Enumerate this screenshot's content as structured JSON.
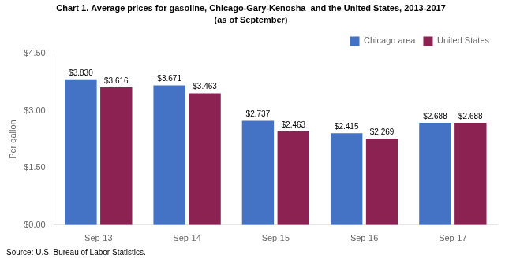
{
  "chart_data": {
    "type": "bar",
    "title": "Chart 1. Average prices for gasoline, Chicago-Gary-Kenosha  and the United States, 2013-2017",
    "subtitle": "(as of September)",
    "y_label": "Per gallon",
    "source": "Source: U.S. Bureau of Labor Statistics.",
    "categories": [
      "Sep-13",
      "Sep-14",
      "Sep-15",
      "Sep-16",
      "Sep-17"
    ],
    "series": [
      {
        "name": "Chicago area",
        "color": "#4472C4",
        "values": [
          3.83,
          3.671,
          2.737,
          2.415,
          2.688
        ],
        "value_labels": [
          "$3.830",
          "$3.671",
          "$2.737",
          "$2.415",
          "$2.688"
        ]
      },
      {
        "name": "United States",
        "color": "#8B2252",
        "values": [
          3.616,
          3.463,
          2.463,
          2.269,
          2.688
        ],
        "value_labels": [
          "$3.616",
          "$3.463",
          "$2.463",
          "$2.269",
          "$2.688"
        ]
      }
    ],
    "ylim": [
      0.0,
      4.5
    ],
    "yticks": [
      {
        "value": 0.0,
        "label": "$0.00"
      },
      {
        "value": 1.5,
        "label": "$1.50"
      },
      {
        "value": 3.0,
        "label": "$3.00"
      },
      {
        "value": 4.5,
        "label": "$4.50"
      }
    ],
    "grid": false,
    "legend": "upper right",
    "data_labels": true
  }
}
